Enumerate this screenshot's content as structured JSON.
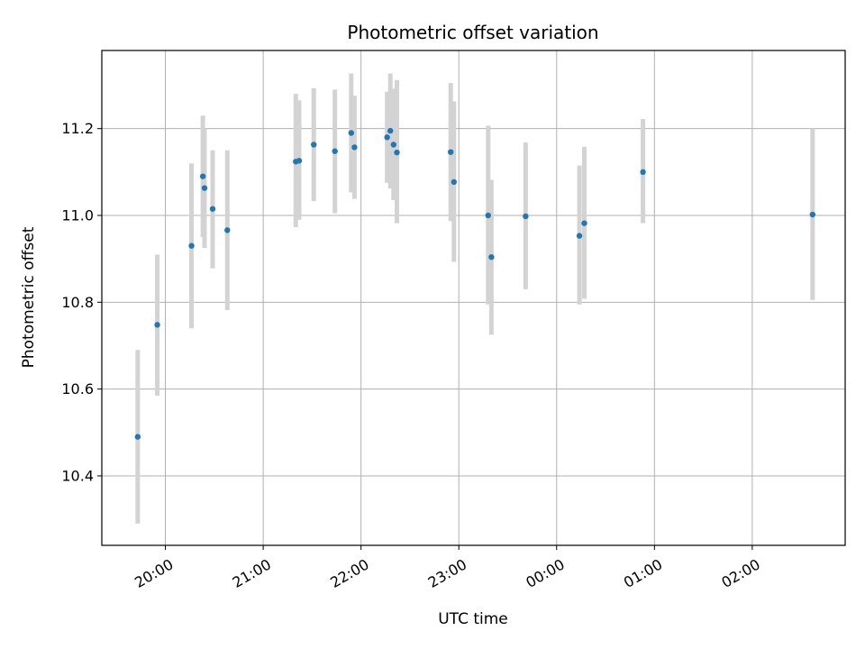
{
  "chart_data": {
    "type": "scatter",
    "title": "Photometric offset variation",
    "xlabel": "UTC time",
    "ylabel": "Photometric offset",
    "x_tick_labels": [
      "20:00",
      "21:00",
      "22:00",
      "23:00",
      "00:00",
      "01:00",
      "02:00"
    ],
    "y_tick_labels": [
      "10.4",
      "10.6",
      "10.8",
      "11.0",
      "11.2"
    ],
    "xlim_hours": [
      19.35,
      26.95
    ],
    "ylim": [
      10.24,
      11.38
    ],
    "grid": true,
    "colors": {
      "point": "#1f77b4",
      "errorbar": "#d3d3d3",
      "grid": "#b0b0b0"
    },
    "points": [
      {
        "t": 19.717,
        "y": 10.49,
        "lo": 10.29,
        "hi": 10.69
      },
      {
        "t": 19.917,
        "y": 10.748,
        "lo": 10.585,
        "hi": 10.91
      },
      {
        "t": 20.267,
        "y": 10.93,
        "lo": 10.74,
        "hi": 11.12
      },
      {
        "t": 20.383,
        "y": 11.09,
        "lo": 10.95,
        "hi": 11.23
      },
      {
        "t": 20.4,
        "y": 11.063,
        "lo": 10.925,
        "hi": 11.2
      },
      {
        "t": 20.483,
        "y": 11.015,
        "lo": 10.878,
        "hi": 11.15
      },
      {
        "t": 20.633,
        "y": 10.966,
        "lo": 10.782,
        "hi": 11.15
      },
      {
        "t": 21.333,
        "y": 11.124,
        "lo": 10.973,
        "hi": 11.28
      },
      {
        "t": 21.367,
        "y": 11.126,
        "lo": 10.99,
        "hi": 11.265
      },
      {
        "t": 21.517,
        "y": 11.163,
        "lo": 11.033,
        "hi": 11.293
      },
      {
        "t": 21.733,
        "y": 11.148,
        "lo": 11.005,
        "hi": 11.29
      },
      {
        "t": 21.9,
        "y": 11.19,
        "lo": 11.053,
        "hi": 11.327
      },
      {
        "t": 21.933,
        "y": 11.157,
        "lo": 11.038,
        "hi": 11.276
      },
      {
        "t": 22.267,
        "y": 11.18,
        "lo": 11.075,
        "hi": 11.285
      },
      {
        "t": 22.3,
        "y": 11.195,
        "lo": 11.062,
        "hi": 11.327
      },
      {
        "t": 22.333,
        "y": 11.163,
        "lo": 11.035,
        "hi": 11.292
      },
      {
        "t": 22.367,
        "y": 11.145,
        "lo": 10.982,
        "hi": 11.312
      },
      {
        "t": 22.917,
        "y": 11.146,
        "lo": 10.987,
        "hi": 11.305
      },
      {
        "t": 22.95,
        "y": 11.077,
        "lo": 10.893,
        "hi": 11.263
      },
      {
        "t": 23.3,
        "y": 11.0,
        "lo": 10.795,
        "hi": 11.207
      },
      {
        "t": 23.333,
        "y": 10.904,
        "lo": 10.725,
        "hi": 11.082
      },
      {
        "t": 23.683,
        "y": 10.998,
        "lo": 10.83,
        "hi": 11.168
      },
      {
        "t": 24.233,
        "y": 10.953,
        "lo": 10.795,
        "hi": 11.115
      },
      {
        "t": 24.283,
        "y": 10.982,
        "lo": 10.808,
        "hi": 11.158
      },
      {
        "t": 24.883,
        "y": 11.1,
        "lo": 10.982,
        "hi": 11.222
      },
      {
        "t": 26.617,
        "y": 11.002,
        "lo": 10.805,
        "hi": 11.2
      }
    ]
  }
}
